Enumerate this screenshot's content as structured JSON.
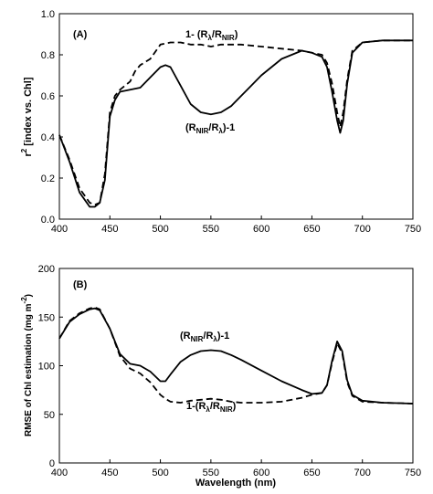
{
  "chart_data": [
    {
      "type": "line",
      "panel_label": "(A)",
      "ylabel_main": "r",
      "ylabel_sup": "2",
      "ylabel_rest": " [index vs. Chl]",
      "xlabel": "",
      "xlim": [
        400,
        750
      ],
      "ylim": [
        0,
        1
      ],
      "xticks": [
        "400",
        "450",
        "500",
        "550",
        "600",
        "650",
        "700",
        "750"
      ],
      "yticks": [
        "0.0",
        "0.2",
        "0.4",
        "0.6",
        "0.8",
        "1.0"
      ],
      "grid": false,
      "series": [
        {
          "name": "1- (Rλ/RNIR)",
          "style": "dashed",
          "x": [
            400,
            410,
            420,
            430,
            435,
            440,
            445,
            450,
            455,
            460,
            470,
            475,
            480,
            490,
            500,
            510,
            520,
            530,
            540,
            550,
            560,
            570,
            580,
            600,
            620,
            640,
            650,
            660,
            665,
            670,
            675,
            678,
            681,
            685,
            690,
            700,
            720,
            750
          ],
          "y": [
            0.41,
            0.29,
            0.15,
            0.08,
            0.07,
            0.08,
            0.22,
            0.52,
            0.6,
            0.63,
            0.67,
            0.72,
            0.75,
            0.78,
            0.85,
            0.86,
            0.86,
            0.85,
            0.85,
            0.84,
            0.85,
            0.85,
            0.85,
            0.84,
            0.83,
            0.82,
            0.81,
            0.8,
            0.76,
            0.66,
            0.52,
            0.45,
            0.52,
            0.68,
            0.82,
            0.86,
            0.87,
            0.87
          ]
        },
        {
          "name": "(RNIR/Rλ)-1",
          "style": "solid",
          "x": [
            400,
            410,
            420,
            430,
            435,
            440,
            445,
            450,
            455,
            460,
            470,
            480,
            490,
            500,
            505,
            510,
            520,
            530,
            540,
            550,
            560,
            570,
            580,
            590,
            600,
            620,
            640,
            650,
            660,
            665,
            670,
            675,
            678,
            681,
            685,
            690,
            700,
            720,
            750
          ],
          "y": [
            0.41,
            0.28,
            0.13,
            0.06,
            0.06,
            0.08,
            0.19,
            0.5,
            0.58,
            0.62,
            0.63,
            0.64,
            0.69,
            0.74,
            0.75,
            0.74,
            0.65,
            0.56,
            0.52,
            0.51,
            0.52,
            0.55,
            0.6,
            0.65,
            0.7,
            0.78,
            0.82,
            0.81,
            0.79,
            0.74,
            0.62,
            0.48,
            0.42,
            0.48,
            0.66,
            0.81,
            0.86,
            0.87,
            0.87
          ]
        }
      ],
      "annotations": [
        {
          "main": "1- (R",
          "sub1": "λ",
          "mid": "/R",
          "sub2": "NIR",
          "tail": ")"
        },
        {
          "main": "(R",
          "sub1": "NIR",
          "mid": "/R",
          "sub2": "λ",
          "tail": ")-1"
        }
      ]
    },
    {
      "type": "line",
      "panel_label": "(B)",
      "ylabel_main": "RMSE of Chl estimation (mg m",
      "ylabel_sup": "-2",
      "ylabel_rest": ")",
      "xlabel": "Wavelength (nm)",
      "xlim": [
        400,
        750
      ],
      "ylim": [
        0,
        200
      ],
      "xticks": [
        "400",
        "450",
        "500",
        "550",
        "600",
        "650",
        "700",
        "750"
      ],
      "yticks": [
        "0",
        "50",
        "100",
        "150",
        "200"
      ],
      "grid": false,
      "series": [
        {
          "name": "(RNIR/Rλ)-1",
          "style": "solid",
          "x": [
            400,
            410,
            420,
            430,
            435,
            440,
            450,
            460,
            470,
            480,
            490,
            500,
            505,
            510,
            520,
            530,
            540,
            550,
            560,
            570,
            580,
            600,
            620,
            640,
            650,
            660,
            665,
            670,
            675,
            680,
            685,
            690,
            700,
            720,
            750
          ],
          "y": [
            128,
            145,
            153,
            158,
            159,
            157,
            138,
            112,
            102,
            100,
            94,
            84,
            84,
            91,
            104,
            111,
            115,
            116,
            115,
            111,
            106,
            95,
            84,
            75,
            71,
            72,
            80,
            105,
            125,
            115,
            85,
            70,
            64,
            62,
            61
          ]
        },
        {
          "name": "1-(Rλ/RNIR)",
          "style": "dashed",
          "x": [
            400,
            410,
            420,
            430,
            435,
            440,
            450,
            460,
            470,
            480,
            490,
            500,
            505,
            510,
            520,
            530,
            540,
            550,
            560,
            570,
            580,
            600,
            620,
            640,
            650,
            660,
            665,
            670,
            675,
            680,
            685,
            690,
            700,
            720,
            750
          ],
          "y": [
            128,
            146,
            154,
            159,
            160,
            158,
            138,
            110,
            97,
            92,
            83,
            70,
            66,
            63,
            62,
            64,
            65,
            66,
            65,
            63,
            62,
            62,
            63,
            67,
            70,
            72,
            80,
            103,
            123,
            113,
            83,
            69,
            63,
            62,
            61
          ]
        }
      ],
      "annotations": [
        {
          "main": "(R",
          "sub1": "NIR",
          "mid": "/R",
          "sub2": "λ",
          "tail": ")-1"
        },
        {
          "main": "1-(R",
          "sub1": "λ",
          "mid": "/R",
          "sub2": "NIR",
          "tail": ")"
        }
      ]
    }
  ]
}
